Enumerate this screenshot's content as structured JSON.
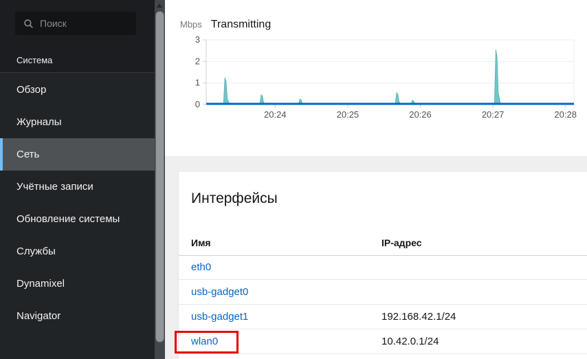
{
  "sidebar": {
    "search_placeholder": "Поиск",
    "section_label": "Система",
    "active_accent_color": "#73bcf7",
    "items": [
      {
        "id": "overview",
        "label": "Обзор",
        "active": false
      },
      {
        "id": "logs",
        "label": "Журналы",
        "active": false
      },
      {
        "id": "network",
        "label": "Сеть",
        "active": true
      },
      {
        "id": "accounts",
        "label": "Учётные записи",
        "active": false
      },
      {
        "id": "updates",
        "label": "Обновление системы",
        "active": false
      },
      {
        "id": "services",
        "label": "Службы",
        "active": false
      },
      {
        "id": "dynamixel",
        "label": "Dynamixel",
        "active": false
      },
      {
        "id": "navigator",
        "label": "Navigator",
        "active": false
      }
    ]
  },
  "chart_data": {
    "type": "area",
    "title": "Transmitting",
    "unit_label": "Mbps",
    "ylim": [
      0,
      3
    ],
    "y_ticks": [
      0,
      1,
      2,
      3
    ],
    "x_ticks": [
      "20:24",
      "20:25",
      "20:26",
      "20:27",
      "20:28"
    ],
    "x_range": [
      "20:23:03",
      "20:28:07"
    ],
    "grid": true,
    "series": [
      {
        "name": "transmitting",
        "baseline_mbps": 0,
        "points": [
          [
            "20:23:19",
            1.25
          ],
          [
            "20:23:49",
            0.45
          ],
          [
            "20:24:21",
            0.25
          ],
          [
            "20:25:41",
            0.55
          ],
          [
            "20:25:54",
            0.2
          ],
          [
            "20:27:03",
            2.55
          ]
        ]
      }
    ],
    "colors": {
      "spike_fill": "#73c5c5",
      "spike_stroke": "#4fb1b1",
      "baseline": "#0066cc",
      "grid": "#ededed",
      "axis": "#d2d2d2",
      "tick_label": "#4f5255"
    }
  },
  "interfaces": {
    "title": "Интерфейсы",
    "columns": [
      "Имя",
      "IP-адрес"
    ],
    "rows": [
      {
        "name": "eth0",
        "ip": "",
        "highlighted": false
      },
      {
        "name": "usb-gadget0",
        "ip": "",
        "highlighted": false
      },
      {
        "name": "usb-gadget1",
        "ip": "192.168.42.1/24",
        "highlighted": false
      },
      {
        "name": "wlan0",
        "ip": "10.42.0.1/24",
        "highlighted": true
      }
    ],
    "link_color": "#0066cc",
    "highlight_color": "#e40000"
  }
}
